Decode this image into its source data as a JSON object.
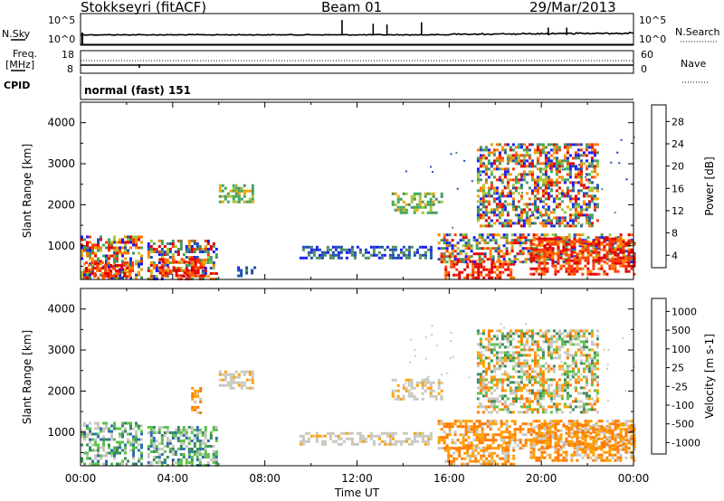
{
  "header": {
    "station": "Stokkseyri (fitACF)",
    "beam": "Beam 01",
    "date": "29/Mar/2013"
  },
  "labels": {
    "nsky": "N.Sky",
    "nsearch": "N.Search",
    "freq_line1": "Freq.",
    "freq_line2": "[MHz]",
    "nave": "Nave",
    "cpid": "CPID",
    "cpid_value": "normal (fast) 151",
    "noise_ticks_left": [
      "10^5",
      "10^0"
    ],
    "noise_ticks_right": [
      "10^5",
      "10^0"
    ],
    "freq_ticks_left": [
      "18",
      "8"
    ],
    "nave_ticks_right": [
      "60",
      "0"
    ]
  },
  "colors": {
    "power_scale": [
      "#1a1aff",
      "#2050b0",
      "#4e8f5e",
      "#3fa85a",
      "#a8c53a",
      "#f0a000",
      "#ff7a00",
      "#ff3a00",
      "#e00000"
    ],
    "velocity_scale": [
      "#1a3fbf",
      "#2f6fb0",
      "#3a8a5a",
      "#5bc24a",
      "#c8c8c0",
      "#ffa000",
      "#ff7a00",
      "#ff4a00",
      "#e00000"
    ]
  },
  "chart_data": [
    {
      "type": "heatmap",
      "name": "power",
      "xlabel": "",
      "ylabel": "Slant Range [km]",
      "xlim": [
        0,
        24
      ],
      "ylim": [
        180,
        4500
      ],
      "y_ticks": [
        "1000",
        "2000",
        "3000",
        "4000"
      ],
      "colorbar": {
        "label": "Power [dB]",
        "ticks": [
          "28",
          "24",
          "20",
          "16",
          "12",
          "8",
          "4"
        ],
        "range": [
          0,
          30
        ]
      },
      "regions": [
        {
          "t0": 0.0,
          "t1": 2.7,
          "r0": 200,
          "r1": 1250,
          "level": "mixed"
        },
        {
          "t0": 0.2,
          "t1": 2.3,
          "r0": 250,
          "r1": 620,
          "level": "high"
        },
        {
          "t0": 2.9,
          "t1": 5.9,
          "r0": 200,
          "r1": 1150,
          "level": "mixed"
        },
        {
          "t0": 3.4,
          "t1": 5.3,
          "r0": 250,
          "r1": 700,
          "level": "high"
        },
        {
          "t0": 6.0,
          "t1": 7.5,
          "r0": 2050,
          "r1": 2500,
          "level": "mid"
        },
        {
          "t0": 6.8,
          "t1": 7.6,
          "r0": 250,
          "r1": 500,
          "level": "low"
        },
        {
          "t0": 9.5,
          "t1": 15.2,
          "r0": 700,
          "r1": 1000,
          "level": "low"
        },
        {
          "t0": 13.5,
          "t1": 15.7,
          "r0": 1800,
          "r1": 2300,
          "level": "mid"
        },
        {
          "t0": 15.8,
          "t1": 18.8,
          "r0": 250,
          "r1": 650,
          "level": "high"
        },
        {
          "t0": 15.5,
          "t1": 24.0,
          "r0": 600,
          "r1": 1300,
          "level": "mixed"
        },
        {
          "t0": 17.2,
          "t1": 22.5,
          "r0": 1500,
          "r1": 3500,
          "level": "mixed"
        },
        {
          "t0": 19.5,
          "t1": 24.0,
          "r0": 300,
          "r1": 1200,
          "level": "high"
        }
      ]
    },
    {
      "type": "heatmap",
      "name": "velocity",
      "xlabel": "Time UT",
      "ylabel": "Slant Range [km]",
      "xlim": [
        0,
        24
      ],
      "ylim": [
        180,
        4500
      ],
      "x_ticks": [
        "00:00",
        "04:00",
        "08:00",
        "12:00",
        "16:00",
        "20:00",
        "00:00"
      ],
      "y_ticks": [
        "1000",
        "2000",
        "3000",
        "4000"
      ],
      "colorbar": {
        "label": "Velocity [m s-1]",
        "ticks": [
          "1000",
          "500",
          "100",
          "25",
          "-25",
          "-100",
          "-500",
          "-1000"
        ],
        "range": [
          -1000,
          1000
        ]
      },
      "regions": [
        {
          "t0": 0.0,
          "t1": 2.7,
          "r0": 200,
          "r1": 1250,
          "level": "positive"
        },
        {
          "t0": 2.9,
          "t1": 5.9,
          "r0": 200,
          "r1": 1150,
          "level": "positive"
        },
        {
          "t0": 6.0,
          "t1": 7.5,
          "r0": 2050,
          "r1": 2500,
          "level": "near_zero"
        },
        {
          "t0": 4.8,
          "t1": 5.2,
          "r0": 1500,
          "r1": 2100,
          "level": "negative"
        },
        {
          "t0": 9.5,
          "t1": 15.2,
          "r0": 700,
          "r1": 1000,
          "level": "near_zero"
        },
        {
          "t0": 13.5,
          "t1": 15.7,
          "r0": 1800,
          "r1": 2300,
          "level": "near_zero"
        },
        {
          "t0": 15.8,
          "t1": 18.8,
          "r0": 250,
          "r1": 650,
          "level": "negative"
        },
        {
          "t0": 15.5,
          "t1": 24.0,
          "r0": 600,
          "r1": 1300,
          "level": "negative"
        },
        {
          "t0": 17.2,
          "t1": 22.5,
          "r0": 1500,
          "r1": 3500,
          "level": "mixed"
        },
        {
          "t0": 19.5,
          "t1": 24.0,
          "r0": 300,
          "r1": 1200,
          "level": "negative"
        }
      ]
    }
  ],
  "noise_spikes": [
    {
      "t": 11.35,
      "sky": 1.0
    },
    {
      "t": 12.7,
      "sky": 0.75
    },
    {
      "t": 13.3,
      "sky": 0.7
    },
    {
      "t": 14.8,
      "sky": 0.85
    },
    {
      "t": 20.3,
      "sky": 0.5
    },
    {
      "t": 21.1,
      "sky": 0.5
    }
  ]
}
